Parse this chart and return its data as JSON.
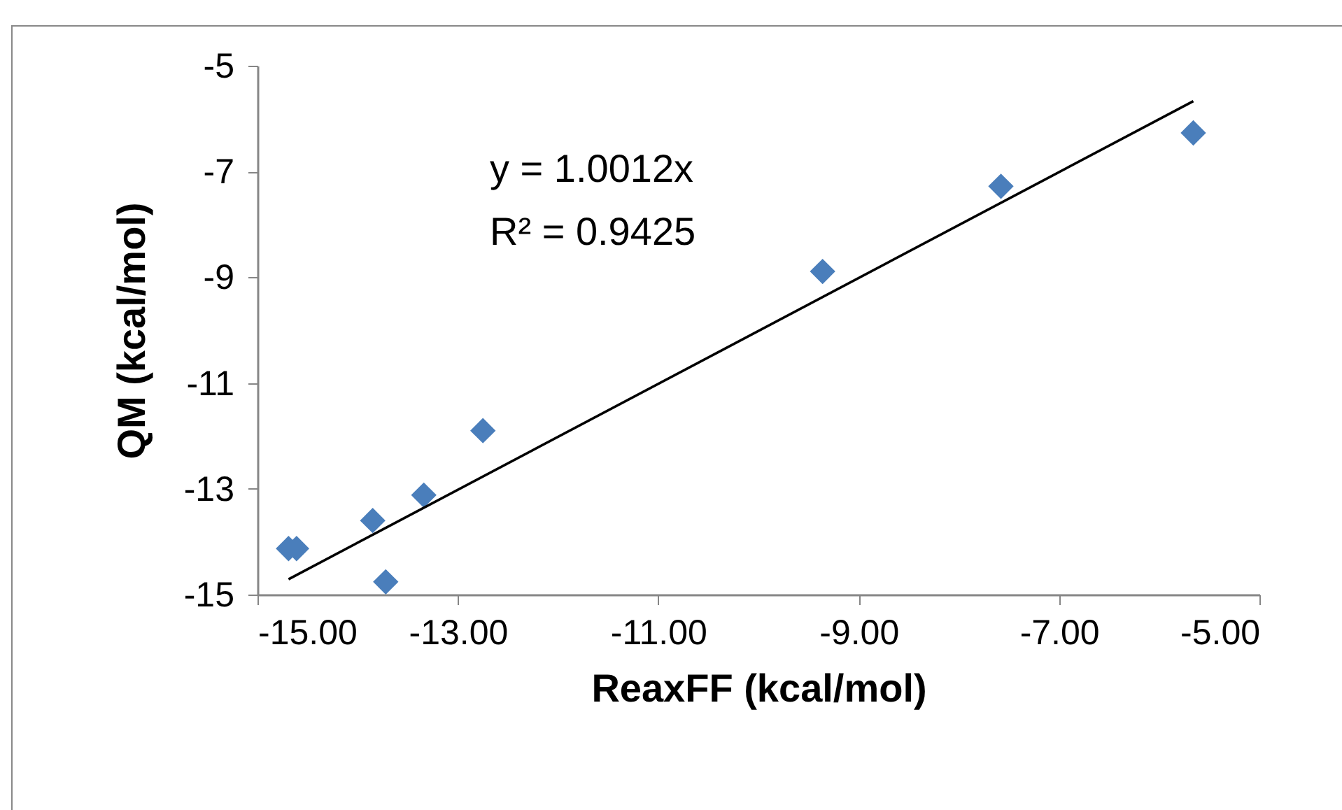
{
  "chart_data": {
    "type": "scatter",
    "xlabel": "ReaxFF (kcal/mol)",
    "ylabel": "QM (kcal/mol)",
    "xlim": [
      -15,
      -5
    ],
    "xticks": [
      {
        "value": -15,
        "label": "-15.00"
      },
      {
        "value": -13,
        "label": "-13.00"
      },
      {
        "value": -11,
        "label": "-11.00"
      },
      {
        "value": -9,
        "label": "-9.00"
      },
      {
        "value": -7,
        "label": "-7.00"
      },
      {
        "value": -5,
        "label": "-5.00"
      }
    ],
    "ylim": [
      -15,
      -5
    ],
    "yticks": [
      -15,
      -13,
      -11,
      -9,
      -7,
      -5
    ],
    "annotations": [
      "y = 1.0012x",
      "R² = 0.9425"
    ],
    "series": [
      {
        "marker": "diamond",
        "color": "#4a7ebb",
        "x": [
          -14.69,
          -14.61,
          -13.85,
          -13.72,
          -13.34,
          -12.75,
          -9.36,
          -7.58,
          -5.66
        ],
        "values": [
          -14.13,
          -14.13,
          -13.6,
          -14.76,
          -13.12,
          -11.9,
          -8.89,
          -7.28,
          -6.27
        ]
      },
      {
        "type": "line",
        "color": "#000000",
        "x": [
          -14.69,
          -5.66
        ],
        "values": [
          -14.71,
          -5.67
        ]
      }
    ]
  }
}
